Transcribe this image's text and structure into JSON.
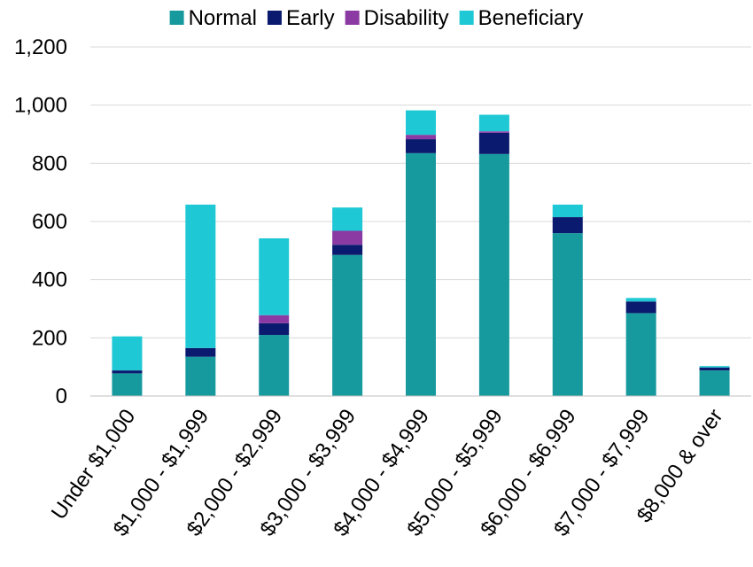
{
  "chart_data": {
    "type": "bar",
    "stacked": true,
    "title": "",
    "xlabel": "",
    "ylabel": "",
    "ylim": [
      0,
      1200
    ],
    "yticks": [
      0,
      200,
      400,
      600,
      800,
      1000,
      1200
    ],
    "ytick_labels": [
      "0",
      "200",
      "400",
      "600",
      "800",
      "1,000",
      "1,200"
    ],
    "grid": true,
    "legend_position": "top",
    "categories": [
      "Under $1,000",
      "$1,000 - $1,999",
      "$2,000 - $2,999",
      "$3,000 - $3,999",
      "$4,000 - $4,999",
      "$5,000 - $5,999",
      "$6,000 - $6,999",
      "$7,000 - $7,999",
      "$8,000 & over"
    ],
    "series": [
      {
        "name": "Normal",
        "color": "#179a9e",
        "values": [
          78,
          135,
          210,
          485,
          835,
          832,
          560,
          285,
          88
        ]
      },
      {
        "name": "Early",
        "color": "#0a1a6e",
        "values": [
          10,
          30,
          40,
          35,
          48,
          73,
          55,
          40,
          10
        ]
      },
      {
        "name": "Disability",
        "color": "#8b3aa3",
        "values": [
          0,
          0,
          28,
          48,
          15,
          5,
          0,
          0,
          0
        ]
      },
      {
        "name": "Beneficiary",
        "color": "#1ec8d4",
        "values": [
          117,
          493,
          264,
          80,
          84,
          57,
          43,
          12,
          5
        ]
      }
    ]
  }
}
